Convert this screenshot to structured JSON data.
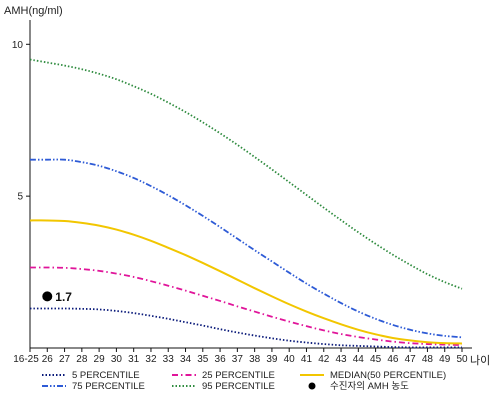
{
  "chart_data": {
    "type": "line",
    "ylabel": "AMH(ng/ml)",
    "xlabel": "나이",
    "x": [
      "16-25",
      "26",
      "27",
      "28",
      "29",
      "30",
      "31",
      "32",
      "33",
      "34",
      "35",
      "36",
      "37",
      "38",
      "39",
      "40",
      "41",
      "42",
      "43",
      "44",
      "45",
      "46",
      "47",
      "48",
      "49",
      "50"
    ],
    "y_ticks": [
      5,
      10
    ],
    "ylim": [
      0,
      10.8
    ],
    "grid": false,
    "legend_position": "bottom",
    "series": [
      {
        "name": "5 PERCENTILE",
        "color": "#0a1a7a",
        "dash": "dotted",
        "values": [
          1.3,
          1.3,
          1.3,
          1.29,
          1.27,
          1.22,
          1.15,
          1.06,
          0.96,
          0.85,
          0.74,
          0.62,
          0.51,
          0.41,
          0.32,
          0.24,
          0.18,
          0.13,
          0.09,
          0.07,
          0.05,
          0.03,
          0.02,
          0.02,
          0.02,
          0.02
        ]
      },
      {
        "name": "25 PERCENTILE",
        "color": "#e0159a",
        "dash": "dashdot",
        "values": [
          2.65,
          2.65,
          2.64,
          2.6,
          2.54,
          2.45,
          2.34,
          2.2,
          2.05,
          1.89,
          1.72,
          1.55,
          1.37,
          1.2,
          1.03,
          0.87,
          0.72,
          0.58,
          0.46,
          0.36,
          0.28,
          0.21,
          0.16,
          0.13,
          0.11,
          0.1
        ]
      },
      {
        "name": "MEDIAN(50 PERCENTILE)",
        "color": "#f2c600",
        "dash": "solid",
        "values": [
          4.2,
          4.2,
          4.18,
          4.12,
          4.03,
          3.9,
          3.73,
          3.53,
          3.3,
          3.06,
          2.8,
          2.53,
          2.25,
          1.97,
          1.7,
          1.44,
          1.2,
          0.98,
          0.78,
          0.6,
          0.45,
          0.33,
          0.25,
          0.19,
          0.16,
          0.15
        ]
      },
      {
        "name": "75 PERCENTILE",
        "color": "#2e5bd6",
        "dash": "dashdotdot",
        "values": [
          6.2,
          6.2,
          6.2,
          6.12,
          6.0,
          5.82,
          5.6,
          5.33,
          5.03,
          4.7,
          4.35,
          3.98,
          3.6,
          3.22,
          2.85,
          2.48,
          2.12,
          1.79,
          1.48,
          1.2,
          0.96,
          0.76,
          0.6,
          0.48,
          0.4,
          0.35
        ]
      },
      {
        "name": "95 PERCENTILE",
        "color": "#2e8b3e",
        "dash": "dotted",
        "values": [
          9.5,
          9.4,
          9.3,
          9.18,
          9.03,
          8.85,
          8.62,
          8.37,
          8.08,
          7.77,
          7.43,
          7.07,
          6.69,
          6.29,
          5.88,
          5.46,
          5.04,
          4.62,
          4.21,
          3.81,
          3.43,
          3.07,
          2.74,
          2.43,
          2.17,
          1.95
        ]
      }
    ],
    "marker": {
      "label": "1.7",
      "x": "26",
      "y": 1.7,
      "legend": "수진자의 AMH 농도",
      "color": "#000000"
    }
  }
}
